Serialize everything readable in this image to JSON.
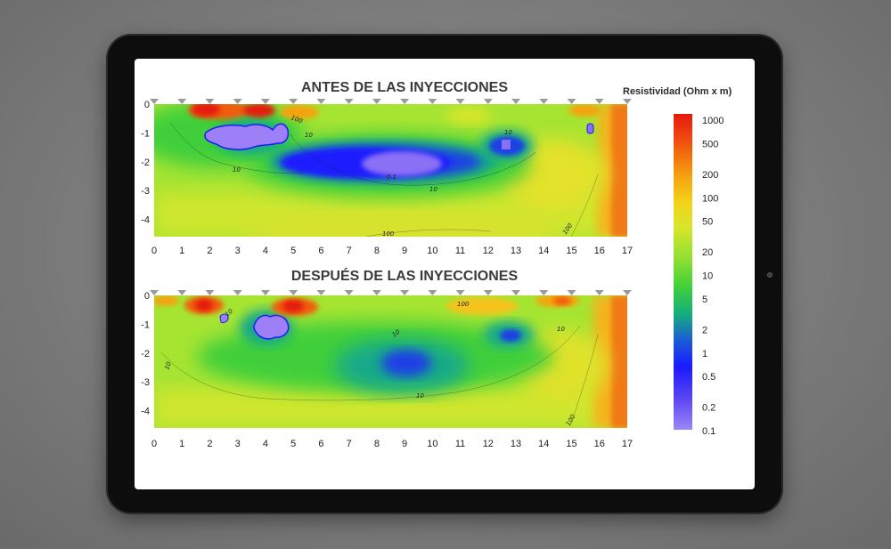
{
  "chart_data": [
    {
      "type": "heatmap",
      "title": "ANTES DE LAS INYECCIONES",
      "xlim": [
        0,
        17
      ],
      "ylim": [
        -4.6,
        0
      ],
      "x_ticks": [
        0,
        1,
        2,
        3,
        4,
        5,
        6,
        7,
        8,
        9,
        10,
        11,
        12,
        13,
        14,
        15,
        16,
        17
      ],
      "y_ticks": [
        0,
        -1,
        -2,
        -3,
        -4
      ],
      "electrodes_x": [
        0,
        1,
        2,
        3,
        4,
        5,
        6,
        7,
        8,
        9,
        10,
        11,
        12,
        13,
        14,
        15,
        16,
        17
      ],
      "contour_labels": [
        {
          "x": 4.8,
          "y": -0.4,
          "text": "100"
        },
        {
          "x": 5.4,
          "y": -1.0,
          "text": "10"
        },
        {
          "x": 2.9,
          "y": -2.2,
          "text": "10"
        },
        {
          "x": 8.5,
          "y": -2.5,
          "text": "0.1"
        },
        {
          "x": 9.9,
          "y": -2.9,
          "text": "10"
        },
        {
          "x": 12.6,
          "y": -0.9,
          "text": "10"
        },
        {
          "x": 8.3,
          "y": -4.5,
          "text": "100"
        },
        {
          "x": 14.8,
          "y": -4.3,
          "text": "100"
        }
      ]
    },
    {
      "type": "heatmap",
      "title": "DESPUÉS DE LAS INYECCIONES",
      "xlim": [
        0,
        17
      ],
      "ylim": [
        -4.6,
        0
      ],
      "x_ticks": [
        0,
        1,
        2,
        3,
        4,
        5,
        6,
        7,
        8,
        9,
        10,
        11,
        12,
        13,
        14,
        15,
        16,
        17
      ],
      "y_ticks": [
        0,
        -1,
        -2,
        -3,
        -4
      ],
      "electrodes_x": [
        0,
        1,
        2,
        3,
        4,
        5,
        6,
        7,
        8,
        9,
        10,
        11,
        12,
        13,
        14,
        15,
        16,
        17
      ],
      "contour_labels": [
        {
          "x": 2.7,
          "y": -0.8,
          "text": "10"
        },
        {
          "x": 0.45,
          "y": -2.5,
          "text": "10"
        },
        {
          "x": 8.6,
          "y": -1.3,
          "text": "10"
        },
        {
          "x": 9.5,
          "y": -3.5,
          "text": "10"
        },
        {
          "x": 11.1,
          "y": -0.3,
          "text": "100"
        },
        {
          "x": 14.5,
          "y": -1.1,
          "text": "10"
        },
        {
          "x": 14.8,
          "y": -4.2,
          "text": "100"
        }
      ]
    }
  ],
  "colorbar": {
    "title": "Resistividad (Ohm x m)",
    "ticks": [
      "1000",
      "500",
      "200",
      "100",
      "50",
      "20",
      "10",
      "5",
      "2",
      "1",
      "0.5",
      "0.2",
      "0.1"
    ],
    "colors": [
      "#e51a0e",
      "#f25c0e",
      "#f5a30f",
      "#f0d21b",
      "#d7e62c",
      "#9ee32f",
      "#3fcf3a",
      "#12a68a",
      "#1a4fd6",
      "#1a1aff",
      "#4b3ff2",
      "#7a60f2",
      "#9a80f7"
    ]
  }
}
